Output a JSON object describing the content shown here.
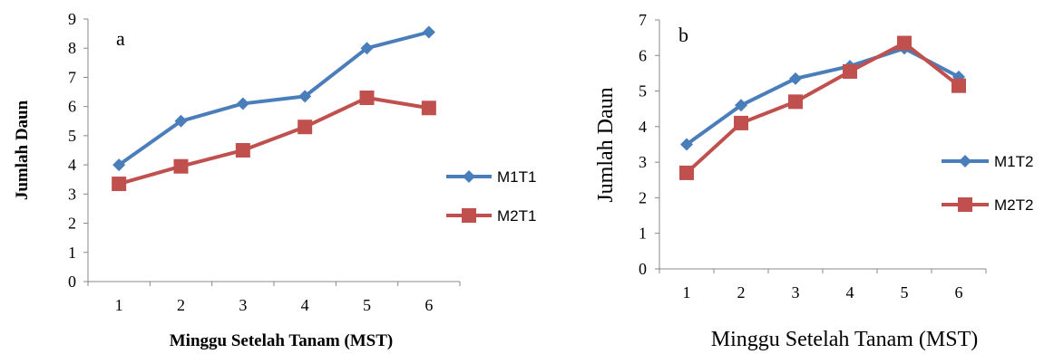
{
  "chart_data": [
    {
      "type": "line",
      "panel_label": "a",
      "xlabel": "Minggu Setelah Tanam (MST)",
      "ylabel": "Jumlah Daun",
      "categories": [
        "1",
        "2",
        "3",
        "4",
        "5",
        "6"
      ],
      "ylim": [
        0,
        9
      ],
      "yticks": [
        "0",
        "1",
        "2",
        "3",
        "4",
        "5",
        "6",
        "7",
        "8",
        "9"
      ],
      "grid": false,
      "legend_position": "right",
      "series": [
        {
          "name": "M1T1",
          "color": "#4a7ebb",
          "marker": "diamond",
          "values": [
            4.0,
            5.5,
            6.1,
            6.35,
            8.0,
            8.55
          ]
        },
        {
          "name": "M2T1",
          "color": "#c0504d",
          "marker": "square",
          "values": [
            3.35,
            3.95,
            4.5,
            5.3,
            6.3,
            5.95
          ]
        }
      ]
    },
    {
      "type": "line",
      "panel_label": "b",
      "xlabel": "Minggu Setelah Tanam (MST)",
      "ylabel": "Jumlah Daun",
      "categories": [
        "1",
        "2",
        "3",
        "4",
        "5",
        "6"
      ],
      "ylim": [
        0,
        7
      ],
      "yticks": [
        "0",
        "1",
        "2",
        "3",
        "4",
        "5",
        "6",
        "7"
      ],
      "grid": false,
      "legend_position": "right",
      "series": [
        {
          "name": "M1T2",
          "color": "#4a7ebb",
          "marker": "diamond",
          "values": [
            3.5,
            4.6,
            5.35,
            5.7,
            6.2,
            5.4
          ]
        },
        {
          "name": "M2T2",
          "color": "#c0504d",
          "marker": "square",
          "values": [
            2.7,
            4.1,
            4.7,
            5.55,
            6.35,
            5.15
          ]
        }
      ]
    }
  ]
}
